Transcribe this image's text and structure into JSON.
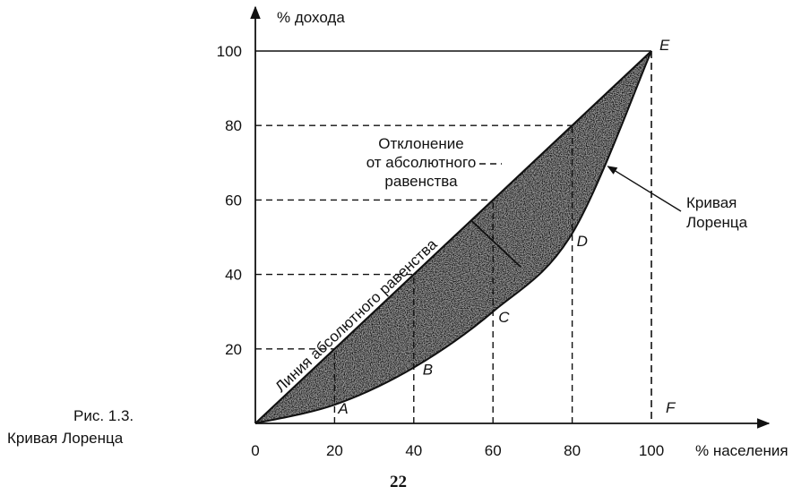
{
  "chart_data": {
    "type": "line",
    "ylabel": "% дохода",
    "xlabel": "% населения",
    "xlim": [
      0,
      100
    ],
    "ylim": [
      0,
      100
    ],
    "x_ticks": [
      "0",
      "20",
      "40",
      "60",
      "80",
      "100"
    ],
    "y_ticks": [
      "20",
      "40",
      "60",
      "80",
      "100"
    ],
    "series": [
      {
        "name": "Линия абсолютного равенства",
        "x": [
          0,
          100
        ],
        "y": [
          0,
          100
        ]
      },
      {
        "name": "Кривая Лоренца",
        "x": [
          0,
          20,
          40,
          60,
          80,
          100
        ],
        "y": [
          0,
          5,
          15,
          30,
          51,
          100
        ]
      }
    ],
    "points": [
      {
        "label": "A",
        "x": 20,
        "y": 5
      },
      {
        "label": "B",
        "x": 40,
        "y": 15
      },
      {
        "label": "C",
        "x": 60,
        "y": 30
      },
      {
        "label": "D",
        "x": 80,
        "y": 51
      },
      {
        "label": "E",
        "x": 100,
        "y": 100
      },
      {
        "label": "F",
        "x": 100,
        "y": 0
      }
    ],
    "annotations": {
      "deviation": [
        "Отклонение",
        "от абсолютного",
        "равенства"
      ],
      "lorenz": [
        "Кривая",
        "Лоренца"
      ],
      "equality_line": "Линия абсолютного равенства"
    }
  },
  "caption": {
    "line1": "Рис. 1.3.",
    "line2": "Кривая  Лоренца"
  },
  "page_number": "22"
}
